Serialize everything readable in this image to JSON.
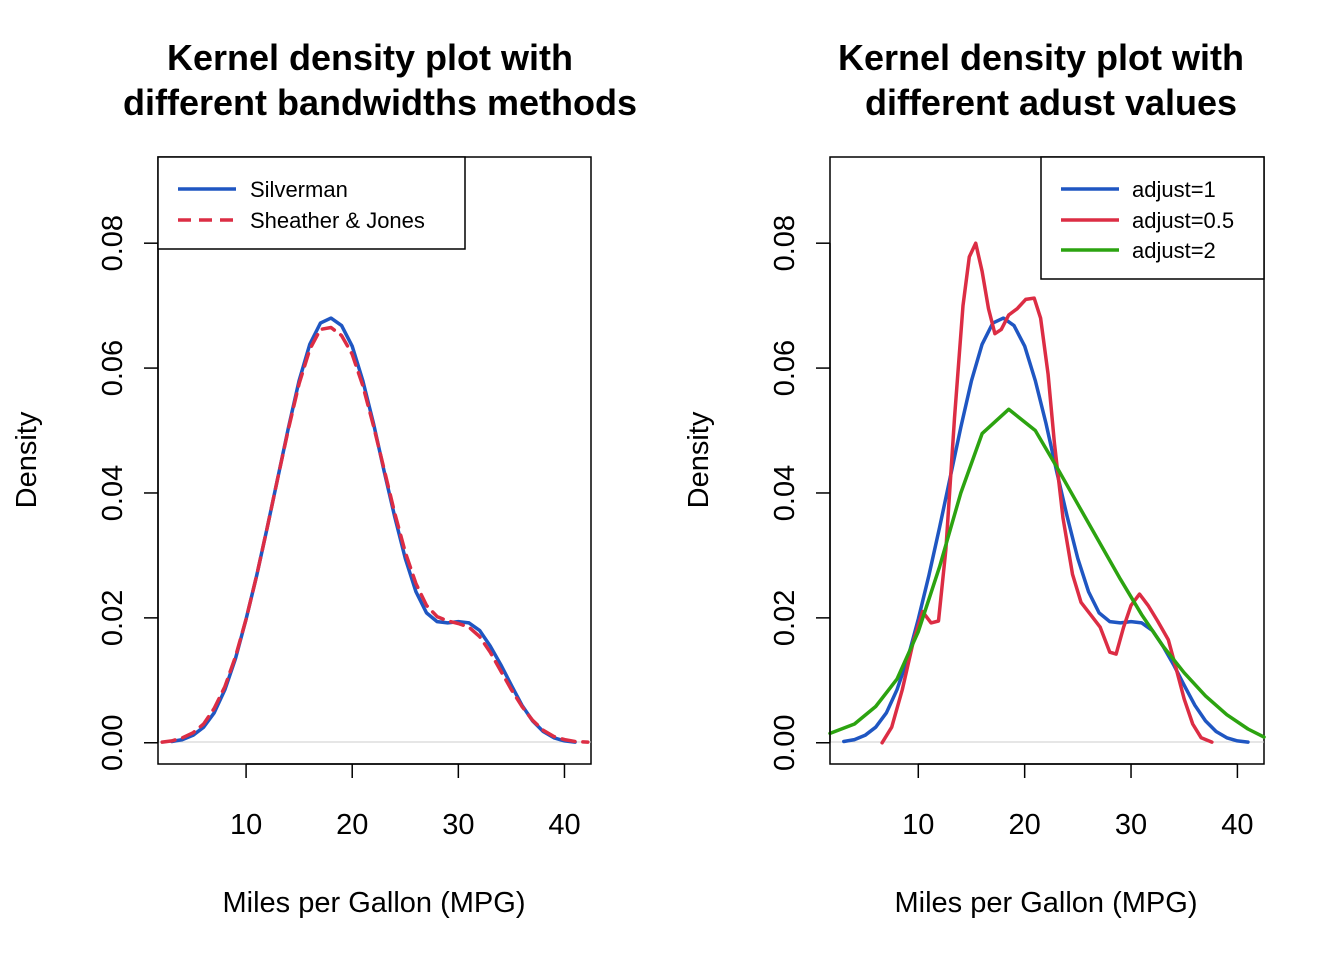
{
  "colors": {
    "blue": "#1f56c2",
    "red": "#dc2d44",
    "green": "#2ca310",
    "zero_line": "#cccccc"
  },
  "chart_data": [
    {
      "type": "line",
      "title": [
        "Kernel density plot with",
        "different bandwidths methods"
      ],
      "xlabel": "Miles per Gallon (MPG)",
      "ylabel": "Density",
      "xlim": [
        1.7,
        42.5
      ],
      "ylim": [
        -0.0034,
        0.0938
      ],
      "xticks": [
        10,
        20,
        30,
        40
      ],
      "xtick_labels": [
        "10",
        "20",
        "30",
        "40"
      ],
      "yticks": [
        0,
        0.02,
        0.04,
        0.06,
        0.08
      ],
      "ytick_labels": [
        "0.00",
        "0.02",
        "0.04",
        "0.06",
        "0.08"
      ],
      "legend_position": "top-left",
      "series": [
        {
          "name": "Silverman",
          "color": "blue",
          "dash": "solid",
          "x": [
            3,
            4,
            5,
            6,
            7,
            8,
            9,
            10,
            11,
            12,
            13,
            14,
            15,
            16,
            17,
            18,
            19,
            20,
            21,
            22,
            23,
            24,
            25,
            26,
            27,
            28,
            29,
            30,
            31,
            32,
            33,
            34,
            35,
            36,
            37,
            38,
            39,
            40,
            41
          ],
          "y": [
            0.0002,
            0.0005,
            0.0012,
            0.0025,
            0.0048,
            0.0085,
            0.0135,
            0.0198,
            0.0268,
            0.0345,
            0.0425,
            0.0505,
            0.058,
            0.0638,
            0.0672,
            0.068,
            0.0668,
            0.0635,
            0.058,
            0.0512,
            0.0435,
            0.0362,
            0.0295,
            0.0242,
            0.0208,
            0.0194,
            0.0192,
            0.0194,
            0.0192,
            0.018,
            0.0155,
            0.0125,
            0.0092,
            0.006,
            0.0035,
            0.0018,
            0.0008,
            0.0003,
            0.0001
          ]
        },
        {
          "name": "Sheather & Jones",
          "color": "red",
          "dash": "dashed",
          "x": [
            2.1,
            3,
            4,
            5,
            6,
            7,
            8,
            9,
            10,
            11,
            12,
            13,
            14,
            15,
            16,
            17,
            18,
            19,
            20,
            21,
            22,
            23,
            24,
            25,
            26,
            27,
            28,
            29,
            30,
            31,
            32,
            33,
            34,
            35,
            36,
            37,
            38,
            39,
            40,
            41,
            42.2
          ],
          "y": [
            0.0001,
            0.0003,
            0.0008,
            0.0016,
            0.003,
            0.0055,
            0.009,
            0.0138,
            0.0198,
            0.0268,
            0.0345,
            0.0425,
            0.0503,
            0.0575,
            0.063,
            0.0662,
            0.0665,
            0.0652,
            0.0622,
            0.0572,
            0.0508,
            0.0438,
            0.0368,
            0.0305,
            0.0255,
            0.022,
            0.0202,
            0.0195,
            0.0191,
            0.0185,
            0.017,
            0.0145,
            0.0115,
            0.0085,
            0.0058,
            0.0036,
            0.002,
            0.001,
            0.0005,
            0.0002,
            0.0001
          ]
        }
      ]
    },
    {
      "type": "line",
      "title": [
        "Kernel density plot with",
        "different adust values"
      ],
      "xlabel": "Miles per Gallon (MPG)",
      "ylabel": "Density",
      "xlim": [
        1.7,
        42.5
      ],
      "ylim": [
        -0.0034,
        0.0938
      ],
      "xticks": [
        10,
        20,
        30,
        40
      ],
      "xtick_labels": [
        "10",
        "20",
        "30",
        "40"
      ],
      "yticks": [
        0,
        0.02,
        0.04,
        0.06,
        0.08
      ],
      "ytick_labels": [
        "0.00",
        "0.02",
        "0.04",
        "0.06",
        "0.08"
      ],
      "legend_position": "top-right",
      "series": [
        {
          "name": "adjust=1",
          "color": "blue",
          "dash": "solid",
          "x": [
            3,
            4,
            5,
            6,
            7,
            8,
            9,
            10,
            11,
            12,
            13,
            14,
            15,
            16,
            17,
            18,
            19,
            20,
            21,
            22,
            23,
            24,
            25,
            26,
            27,
            28,
            29,
            30,
            31,
            32,
            33,
            34,
            35,
            36,
            37,
            38,
            39,
            40,
            41
          ],
          "y": [
            0.0002,
            0.0005,
            0.0012,
            0.0025,
            0.0048,
            0.0085,
            0.0135,
            0.0198,
            0.0268,
            0.0345,
            0.0425,
            0.0505,
            0.058,
            0.0638,
            0.0672,
            0.068,
            0.0668,
            0.0635,
            0.058,
            0.0512,
            0.0435,
            0.0362,
            0.0295,
            0.0242,
            0.0208,
            0.0194,
            0.0192,
            0.0194,
            0.0192,
            0.018,
            0.0155,
            0.0125,
            0.0092,
            0.006,
            0.0035,
            0.0018,
            0.0008,
            0.0003,
            0.0001
          ]
        },
        {
          "name": "adjust=0.5",
          "color": "red",
          "dash": "solid",
          "x": [
            6.6,
            7.5,
            8.5,
            9.5,
            10.4,
            11.2,
            11.9,
            12.6,
            13.4,
            14.2,
            14.8,
            15.4,
            16.0,
            16.6,
            17.2,
            17.8,
            18.5,
            19.3,
            20.1,
            20.9,
            21.5,
            22.2,
            22.8,
            23.6,
            24.5,
            25.3,
            26.2,
            27.1,
            28.0,
            28.6,
            29.3,
            30.0,
            30.8,
            31.6,
            32.5,
            33.5,
            34.3,
            35.0,
            35.8,
            36.6,
            37.6
          ],
          "y": [
            0.0,
            0.0025,
            0.0085,
            0.016,
            0.021,
            0.0192,
            0.0195,
            0.031,
            0.052,
            0.07,
            0.0778,
            0.08,
            0.0755,
            0.0695,
            0.0655,
            0.0662,
            0.0685,
            0.0695,
            0.071,
            0.0712,
            0.068,
            0.059,
            0.048,
            0.036,
            0.027,
            0.0225,
            0.0205,
            0.0185,
            0.0145,
            0.0142,
            0.0185,
            0.022,
            0.0238,
            0.022,
            0.0195,
            0.0165,
            0.0115,
            0.007,
            0.003,
            0.0008,
            0.0001
          ]
        },
        {
          "name": "adjust=2",
          "color": "green",
          "dash": "solid",
          "x": [
            1.7,
            4,
            6,
            8,
            10,
            12,
            14,
            16,
            18.5,
            21,
            23,
            25,
            27,
            29,
            31,
            33,
            35,
            37,
            39,
            41,
            42.5
          ],
          "y": [
            0.0015,
            0.003,
            0.0058,
            0.0102,
            0.0178,
            0.0282,
            0.04,
            0.0495,
            0.0534,
            0.05,
            0.0442,
            0.0382,
            0.0322,
            0.0262,
            0.0205,
            0.0155,
            0.0112,
            0.0075,
            0.0045,
            0.0022,
            0.0009
          ]
        }
      ]
    }
  ]
}
